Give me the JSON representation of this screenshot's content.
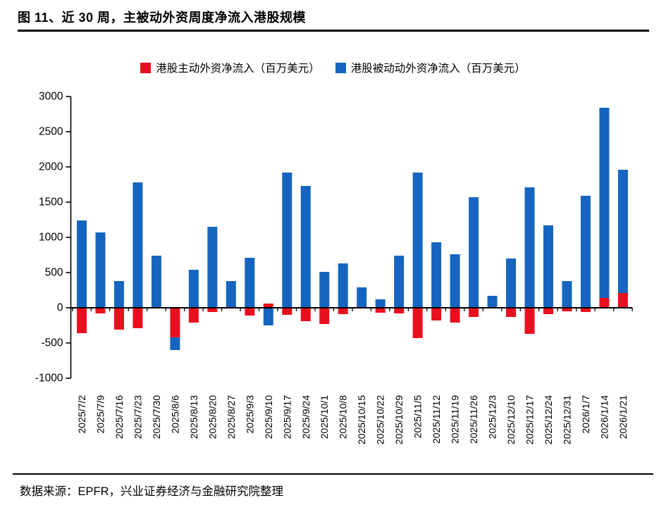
{
  "header": {
    "title": "图 11、近 30 周，主被动外资周度净流入港股规模"
  },
  "footer": {
    "source": "数据来源：EPFR，兴业证券经济与金融研究院整理"
  },
  "colors": {
    "active": "#e8101e",
    "passive": "#1565c0",
    "axis": "#000000",
    "text": "#000000"
  },
  "chart_data": {
    "type": "bar",
    "stacked": true,
    "grid": false,
    "legend_position": "top",
    "unit": "百万美元",
    "ylim": [
      -1000,
      3000
    ],
    "yticks": [
      3000,
      2500,
      2000,
      1500,
      1000,
      500,
      0,
      -500,
      -1000
    ],
    "categories": [
      "2025/7/2",
      "2025/7/9",
      "2025/7/16",
      "2025/7/23",
      "2025/7/30",
      "2025/8/6",
      "2025/8/13",
      "2025/8/20",
      "2025/8/27",
      "2025/9/3",
      "2025/9/10",
      "2025/9/17",
      "2025/9/24",
      "2025/10/1",
      "2025/10/8",
      "2025/10/15",
      "2025/10/22",
      "2025/10/29",
      "2025/11/5",
      "2025/11/12",
      "2025/11/19",
      "2025/11/26",
      "2025/12/3",
      "2025/12/10",
      "2025/12/17",
      "2025/12/24",
      "2025/12/31",
      "2026/1/7",
      "2026/1/14",
      "2026/1/21"
    ],
    "series": [
      {
        "name": "港股主动外资净流入（百万美元）",
        "color_key": "active",
        "values": [
          -360,
          -80,
          -310,
          -290,
          0,
          -420,
          -210,
          -60,
          0,
          -110,
          60,
          -100,
          -190,
          -230,
          -90,
          0,
          -70,
          -80,
          -430,
          -180,
          -210,
          -130,
          0,
          -130,
          -370,
          -90,
          -50,
          -60,
          140,
          210
        ]
      },
      {
        "name": "港股被动动外资净流入（百万美元）",
        "color_key": "passive",
        "values": [
          1240,
          1070,
          380,
          1780,
          740,
          -180,
          540,
          1150,
          380,
          710,
          -250,
          1920,
          1730,
          510,
          630,
          290,
          120,
          740,
          1920,
          930,
          760,
          1570,
          170,
          700,
          1710,
          1170,
          380,
          1590,
          2700,
          1750
        ]
      }
    ]
  }
}
